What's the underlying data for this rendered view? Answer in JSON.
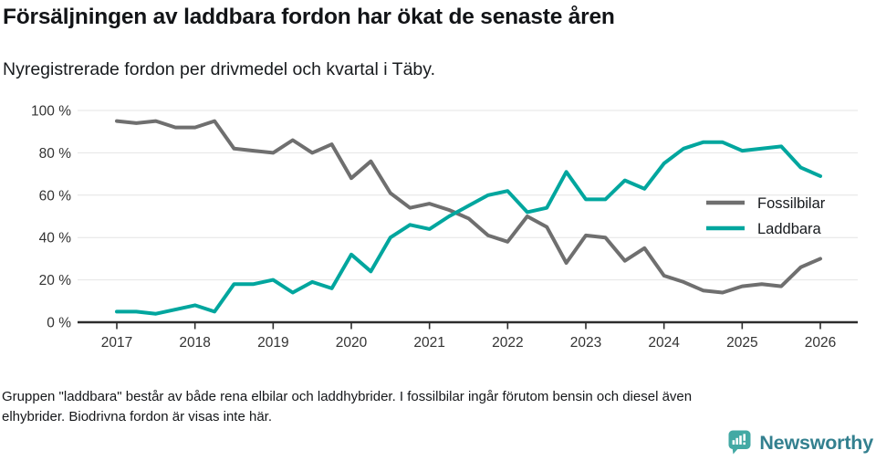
{
  "header": {
    "title": "Försäljningen av laddbara fordon har ökat de senaste åren",
    "subtitle": "Nyregistrerade fordon per drivmedel och kvartal i Täby."
  },
  "chart_data": {
    "type": "line",
    "title": "Försäljningen av laddbara fordon har ökat de senaste åren",
    "subtitle": "Nyregistrerade fordon per drivmedel och kvartal i Täby.",
    "x_unit": "quarter",
    "x_start_label": "2017",
    "x_tick_labels": [
      "2017",
      "2018",
      "2019",
      "2020",
      "2021",
      "2022",
      "2023",
      "2024",
      "2025",
      "2026"
    ],
    "y_ticks": [
      0,
      20,
      40,
      60,
      80,
      100
    ],
    "y_tick_labels": [
      "0 %",
      "20 %",
      "40 %",
      "60 %",
      "80 %",
      "100 %"
    ],
    "ylim": [
      0,
      100
    ],
    "grid": true,
    "legend_position": "right-middle",
    "series": [
      {
        "name": "Fossilbilar",
        "color": "#6f6f6f",
        "values": [
          95,
          94,
          95,
          92,
          92,
          95,
          82,
          81,
          80,
          86,
          80,
          84,
          68,
          76,
          61,
          54,
          56,
          53,
          49,
          41,
          38,
          50,
          45,
          28,
          41,
          40,
          29,
          35,
          22,
          19,
          15,
          14,
          17,
          18,
          17,
          26,
          30
        ]
      },
      {
        "name": "Laddbara",
        "color": "#00a69e",
        "values": [
          5,
          5,
          4,
          6,
          8,
          5,
          18,
          18,
          20,
          14,
          19,
          16,
          32,
          24,
          40,
          46,
          44,
          50,
          55,
          60,
          62,
          52,
          54,
          71,
          58,
          58,
          67,
          63,
          75,
          82,
          85,
          85,
          81,
          82,
          83,
          73,
          69
        ]
      }
    ]
  },
  "footer": {
    "note_lines": [
      "Gruppen \"laddbara\" består av både rena elbilar och laddhybrider. I fossilbilar ingår förutom bensin och diesel även",
      "elhybrider. Biodrivna fordon är visas inte här."
    ],
    "logo_text": "Newsworthy"
  },
  "colors": {
    "fossil_line": "#6f6f6f",
    "laddbara_line": "#00a69e",
    "grid": "#e4e4e4",
    "axis": "#2d2d2d",
    "tick_text": "#333333",
    "logo_icon": "#43a9a4",
    "logo_text": "#33808f"
  }
}
